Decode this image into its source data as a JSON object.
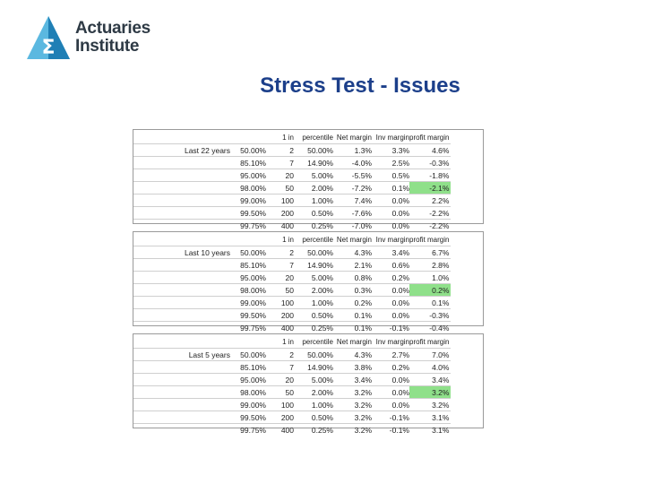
{
  "logo": {
    "symbol": "Σ",
    "line1": "Actuaries",
    "line2": "Institute",
    "colors": {
      "triangle_light": "#5bb8e0",
      "triangle_dark": "#1f7fb5"
    }
  },
  "title": "Stress Test - Issues",
  "headers": [
    "1 in",
    "percentile",
    "Net margin",
    "Inv margin",
    "profit margin"
  ],
  "highlight_color": "#8fe08a",
  "panels": [
    {
      "label": "Last 22 years",
      "rows": [
        [
          "50.00%",
          "2",
          "50.00%",
          "1.3%",
          "3.3%",
          "4.6%"
        ],
        [
          "85.10%",
          "7",
          "14.90%",
          "-4.0%",
          "2.5%",
          "-0.3%"
        ],
        [
          "95.00%",
          "20",
          "5.00%",
          "-5.5%",
          "0.5%",
          "-1.8%"
        ],
        [
          "98.00%",
          "50",
          "2.00%",
          "-7.2%",
          "0.1%",
          "-2.1%"
        ],
        [
          "99.00%",
          "100",
          "1.00%",
          "7.4%",
          "0.0%",
          "2.2%"
        ],
        [
          "99.50%",
          "200",
          "0.50%",
          "-7.6%",
          "0.0%",
          "-2.2%"
        ],
        [
          "99.75%",
          "400",
          "0.25%",
          "-7.0%",
          "0.0%",
          "-2.2%"
        ]
      ]
    },
    {
      "label": "Last 10 years",
      "rows": [
        [
          "50.00%",
          "2",
          "50.00%",
          "4.3%",
          "3.4%",
          "6.7%"
        ],
        [
          "85.10%",
          "7",
          "14.90%",
          "2.1%",
          "0.6%",
          "2.8%"
        ],
        [
          "95.00%",
          "20",
          "5.00%",
          "0.8%",
          "0.2%",
          "1.0%"
        ],
        [
          "98.00%",
          "50",
          "2.00%",
          "0.3%",
          "0.0%",
          "0.2%"
        ],
        [
          "99.00%",
          "100",
          "1.00%",
          "0.2%",
          "0.0%",
          "0.1%"
        ],
        [
          "99.50%",
          "200",
          "0.50%",
          "0.1%",
          "0.0%",
          "-0.3%"
        ],
        [
          "99.75%",
          "400",
          "0.25%",
          "0.1%",
          "-0.1%",
          "-0.4%"
        ]
      ]
    },
    {
      "label": "Last 5 years",
      "rows": [
        [
          "50.00%",
          "2",
          "50.00%",
          "4.3%",
          "2.7%",
          "7.0%"
        ],
        [
          "85.10%",
          "7",
          "14.90%",
          "3.8%",
          "0.2%",
          "4.0%"
        ],
        [
          "95.00%",
          "20",
          "5.00%",
          "3.4%",
          "0.0%",
          "3.4%"
        ],
        [
          "98.00%",
          "50",
          "2.00%",
          "3.2%",
          "0.0%",
          "3.2%"
        ],
        [
          "99.00%",
          "100",
          "1.00%",
          "3.2%",
          "0.0%",
          "3.2%"
        ],
        [
          "99.50%",
          "200",
          "0.50%",
          "3.2%",
          "-0.1%",
          "3.1%"
        ],
        [
          "99.75%",
          "400",
          "0.25%",
          "3.2%",
          "-0.1%",
          "3.1%"
        ]
      ]
    }
  ]
}
